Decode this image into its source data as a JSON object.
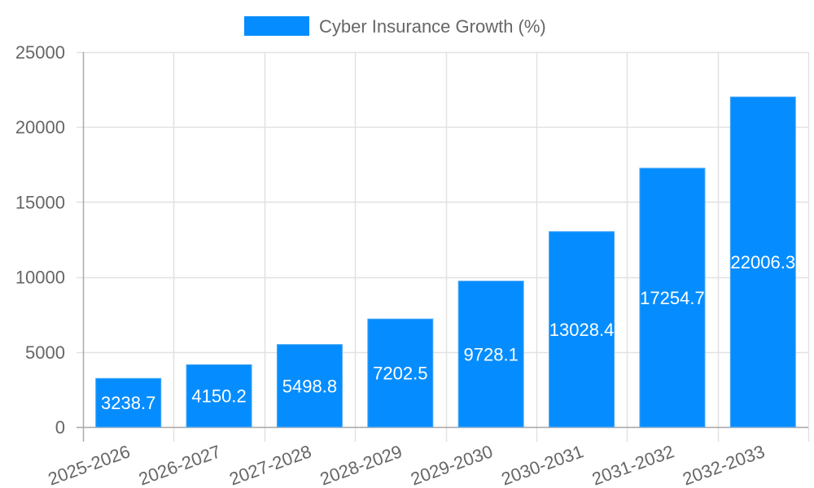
{
  "chart_data": {
    "type": "bar",
    "title": "",
    "legend": [
      {
        "label": "Cyber Insurance Growth (%)",
        "color": "#058DFF"
      }
    ],
    "legend_position": "top",
    "categories": [
      "2025-2026",
      "2026-2027",
      "2027-2028",
      "2028-2029",
      "2029-2030",
      "2030-2031",
      "2031-2032",
      "2032-2033"
    ],
    "series": [
      {
        "name": "Cyber Insurance Growth (%)",
        "values": [
          3238.7,
          4150.2,
          5498.8,
          7202.5,
          9728.1,
          13028.4,
          17254.7,
          22006.3
        ],
        "color": "#058DFF"
      }
    ],
    "value_labels": [
      "3238.7",
      "4150.2",
      "5498.8",
      "7202.5",
      "9728.1",
      "13028.4",
      "17254.7",
      "22006.3"
    ],
    "xlabel": "",
    "ylabel": "",
    "ylim": [
      0,
      25000
    ],
    "y_ticks": [
      "0",
      "5000",
      "10000",
      "15000",
      "20000",
      "25000"
    ],
    "y_tick_values": [
      0,
      5000,
      10000,
      15000,
      20000,
      25000
    ],
    "grid": true,
    "x_tick_rotation": -20
  }
}
